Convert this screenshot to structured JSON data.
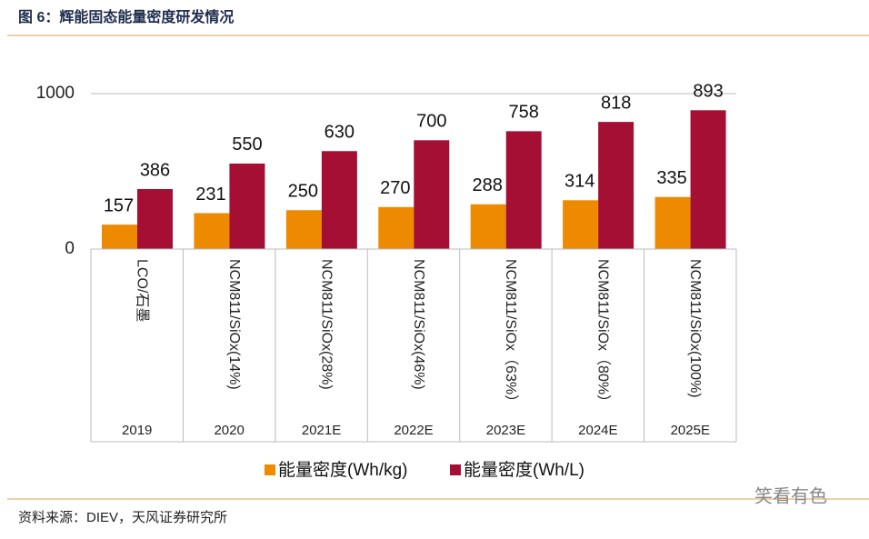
{
  "header": {
    "title": "图 6：辉能固态能量密度研发情况"
  },
  "chart_data": {
    "type": "bar",
    "categories": [
      "LCO/石墨",
      "NCM811/SiOx(14%)",
      "NCM811/SiOx(28%)",
      "NCM811/SiOx(46%)",
      "NCM811/SiOx（63%）",
      "NCM811/SiOx（80%）",
      "NCM811/SiOx(100%)"
    ],
    "years": [
      "2019",
      "2020",
      "2021E",
      "2022E",
      "2023E",
      "2024E",
      "2025E"
    ],
    "series": [
      {
        "name": "能量密度(Wh/kg)",
        "color": "#ee8a00",
        "values": [
          157,
          231,
          250,
          270,
          288,
          314,
          335
        ]
      },
      {
        "name": "能量密度(Wh/L)",
        "color": "#a50f34",
        "values": [
          386,
          550,
          630,
          700,
          758,
          818,
          893
        ]
      }
    ],
    "ylim": [
      0,
      1000
    ],
    "yticks": [
      0,
      1000
    ],
    "grid": true,
    "legend": "bottom"
  },
  "footer": {
    "source": "资料来源：DIEV，天风证券研究所",
    "watermark": "笑看有色"
  }
}
